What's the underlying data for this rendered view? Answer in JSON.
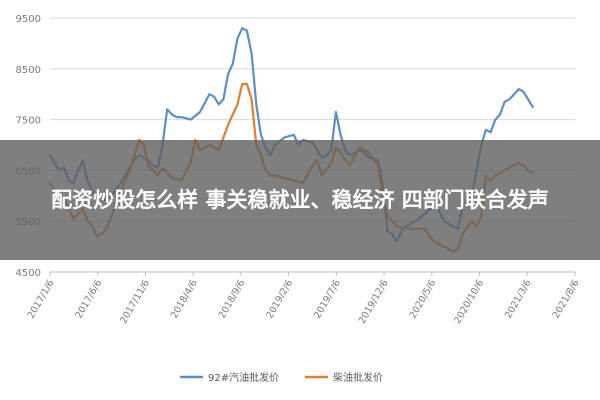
{
  "banner": {
    "title": "配资炒股怎么样 事关稳就业、稳经济 四部门联合发声"
  },
  "colors": {
    "gasoline": "#5b8fc9",
    "diesel": "#e0802f",
    "grid": "#d9d9d9",
    "axis": "#bfbfbf",
    "banner_bg": "#5f5f5f"
  },
  "chart_data": {
    "type": "line",
    "title": "",
    "xlabel": "",
    "ylabel": "",
    "ylim": [
      4500,
      9500
    ],
    "yticks": [
      4500,
      5500,
      6500,
      7500,
      8500,
      9500
    ],
    "x_tick_labels": [
      "2017/1/6",
      "2017/6/6",
      "2017/11/6",
      "2018/4/6",
      "2018/9/6",
      "2019/2/6",
      "2019/7/6",
      "2019/12/6",
      "2020/5/6",
      "2020/10/6",
      "2021/3/6",
      "2021/8/6"
    ],
    "x_range_months": [
      0,
      56
    ],
    "grid": "horizontal",
    "legend": "bottom",
    "series": [
      {
        "name": "92#汽油批发价",
        "color": "#5b8fc9",
        "points": [
          [
            0,
            6800
          ],
          [
            0.5,
            6650
          ],
          [
            1,
            6500
          ],
          [
            1.5,
            6550
          ],
          [
            2,
            6300
          ],
          [
            2.5,
            6250
          ],
          [
            3,
            6500
          ],
          [
            3.5,
            6700
          ],
          [
            4,
            6300
          ],
          [
            4.5,
            6100
          ],
          [
            5,
            6000
          ],
          [
            5.5,
            5950
          ],
          [
            6,
            5900
          ],
          [
            7,
            6100
          ],
          [
            8,
            6400
          ],
          [
            8.5,
            6550
          ],
          [
            9,
            6700
          ],
          [
            9.5,
            6800
          ],
          [
            10,
            6750
          ],
          [
            11,
            6600
          ],
          [
            11.5,
            6550
          ],
          [
            12,
            7000
          ],
          [
            12.5,
            7700
          ],
          [
            13,
            7600
          ],
          [
            13.5,
            7550
          ],
          [
            14,
            7550
          ],
          [
            15,
            7500
          ],
          [
            16,
            7650
          ],
          [
            17,
            8000
          ],
          [
            17.5,
            7950
          ],
          [
            18,
            7800
          ],
          [
            18.5,
            7900
          ],
          [
            19,
            8400
          ],
          [
            19.5,
            8600
          ],
          [
            20,
            9100
          ],
          [
            20.5,
            9300
          ],
          [
            21,
            9250
          ],
          [
            21.5,
            8800
          ],
          [
            22,
            7800
          ],
          [
            22.5,
            7200
          ],
          [
            23,
            6950
          ],
          [
            23.5,
            6800
          ],
          [
            24,
            7000
          ],
          [
            25,
            7150
          ],
          [
            26,
            7200
          ],
          [
            26.5,
            7000
          ],
          [
            27,
            7100
          ],
          [
            28,
            7050
          ],
          [
            28.5,
            6900
          ],
          [
            29,
            6750
          ],
          [
            29.5,
            6800
          ],
          [
            30,
            6900
          ],
          [
            30.5,
            7650
          ],
          [
            31,
            7200
          ],
          [
            31.5,
            6900
          ],
          [
            32,
            6800
          ],
          [
            33,
            6900
          ],
          [
            33.5,
            6850
          ],
          [
            34,
            6750
          ],
          [
            35,
            6700
          ],
          [
            35.5,
            6200
          ],
          [
            36,
            5300
          ],
          [
            36.5,
            5250
          ],
          [
            37,
            5100
          ],
          [
            37.5,
            5300
          ],
          [
            38,
            5400
          ],
          [
            39,
            5500
          ],
          [
            40,
            5650
          ],
          [
            41,
            5800
          ],
          [
            41.5,
            5700
          ],
          [
            42,
            5500
          ],
          [
            43,
            5400
          ],
          [
            43.5,
            5350
          ],
          [
            44,
            5800
          ],
          [
            45,
            6000
          ],
          [
            45.5,
            6500
          ],
          [
            46,
            7000
          ],
          [
            46.5,
            7300
          ],
          [
            47,
            7250
          ],
          [
            47.5,
            7500
          ],
          [
            48,
            7600
          ],
          [
            48.5,
            7850
          ],
          [
            49,
            7900
          ],
          [
            49.5,
            8000
          ],
          [
            50,
            8100
          ],
          [
            50.5,
            8050
          ],
          [
            51,
            7900
          ],
          [
            51.5,
            7750
          ]
        ]
      },
      {
        "name": "柴油批发价",
        "color": "#e0802f",
        "points": [
          [
            0,
            6250
          ],
          [
            0.5,
            6100
          ],
          [
            1,
            6000
          ],
          [
            1.5,
            5950
          ],
          [
            2,
            5750
          ],
          [
            2.5,
            5550
          ],
          [
            3,
            5650
          ],
          [
            3.5,
            5750
          ],
          [
            4,
            5500
          ],
          [
            4.5,
            5400
          ],
          [
            5,
            5200
          ],
          [
            5.5,
            5250
          ],
          [
            6,
            5350
          ],
          [
            7,
            5800
          ],
          [
            8,
            6300
          ],
          [
            8.5,
            6500
          ],
          [
            9,
            6800
          ],
          [
            9.5,
            7100
          ],
          [
            10,
            7000
          ],
          [
            10.5,
            6600
          ],
          [
            11,
            6500
          ],
          [
            11.5,
            6400
          ],
          [
            12,
            6550
          ],
          [
            13,
            6350
          ],
          [
            14,
            6300
          ],
          [
            15,
            6650
          ],
          [
            15.5,
            7100
          ],
          [
            16,
            6900
          ],
          [
            17,
            7000
          ],
          [
            18,
            6900
          ],
          [
            19,
            7400
          ],
          [
            19.5,
            7600
          ],
          [
            20,
            7800
          ],
          [
            20.5,
            8200
          ],
          [
            21,
            8200
          ],
          [
            21.5,
            7900
          ],
          [
            22,
            7000
          ],
          [
            22.5,
            6800
          ],
          [
            23,
            6500
          ],
          [
            23.5,
            6400
          ],
          [
            24,
            6400
          ],
          [
            25,
            6350
          ],
          [
            26,
            6300
          ],
          [
            27,
            6250
          ],
          [
            28,
            6600
          ],
          [
            28.5,
            6700
          ],
          [
            29,
            6400
          ],
          [
            30,
            6650
          ],
          [
            30.5,
            6950
          ],
          [
            31,
            6850
          ],
          [
            31.5,
            6700
          ],
          [
            32,
            6600
          ],
          [
            33,
            6950
          ],
          [
            34,
            6850
          ],
          [
            35,
            6600
          ],
          [
            35.5,
            6000
          ],
          [
            36,
            5600
          ],
          [
            37,
            5400
          ],
          [
            38,
            5350
          ],
          [
            39,
            5350
          ],
          [
            40,
            5350
          ],
          [
            40.5,
            5200
          ],
          [
            41,
            5100
          ],
          [
            42,
            5000
          ],
          [
            42.5,
            4950
          ],
          [
            43,
            4900
          ],
          [
            43.5,
            4950
          ],
          [
            44,
            5250
          ],
          [
            45,
            5500
          ],
          [
            45.5,
            5400
          ],
          [
            46,
            5600
          ],
          [
            46.5,
            6400
          ],
          [
            47,
            6300
          ],
          [
            47.5,
            6400
          ],
          [
            48,
            6450
          ],
          [
            48.5,
            6500
          ],
          [
            49,
            6550
          ],
          [
            49.5,
            6600
          ],
          [
            50,
            6650
          ],
          [
            50.5,
            6600
          ],
          [
            51,
            6500
          ],
          [
            51.5,
            6450
          ]
        ]
      }
    ]
  }
}
